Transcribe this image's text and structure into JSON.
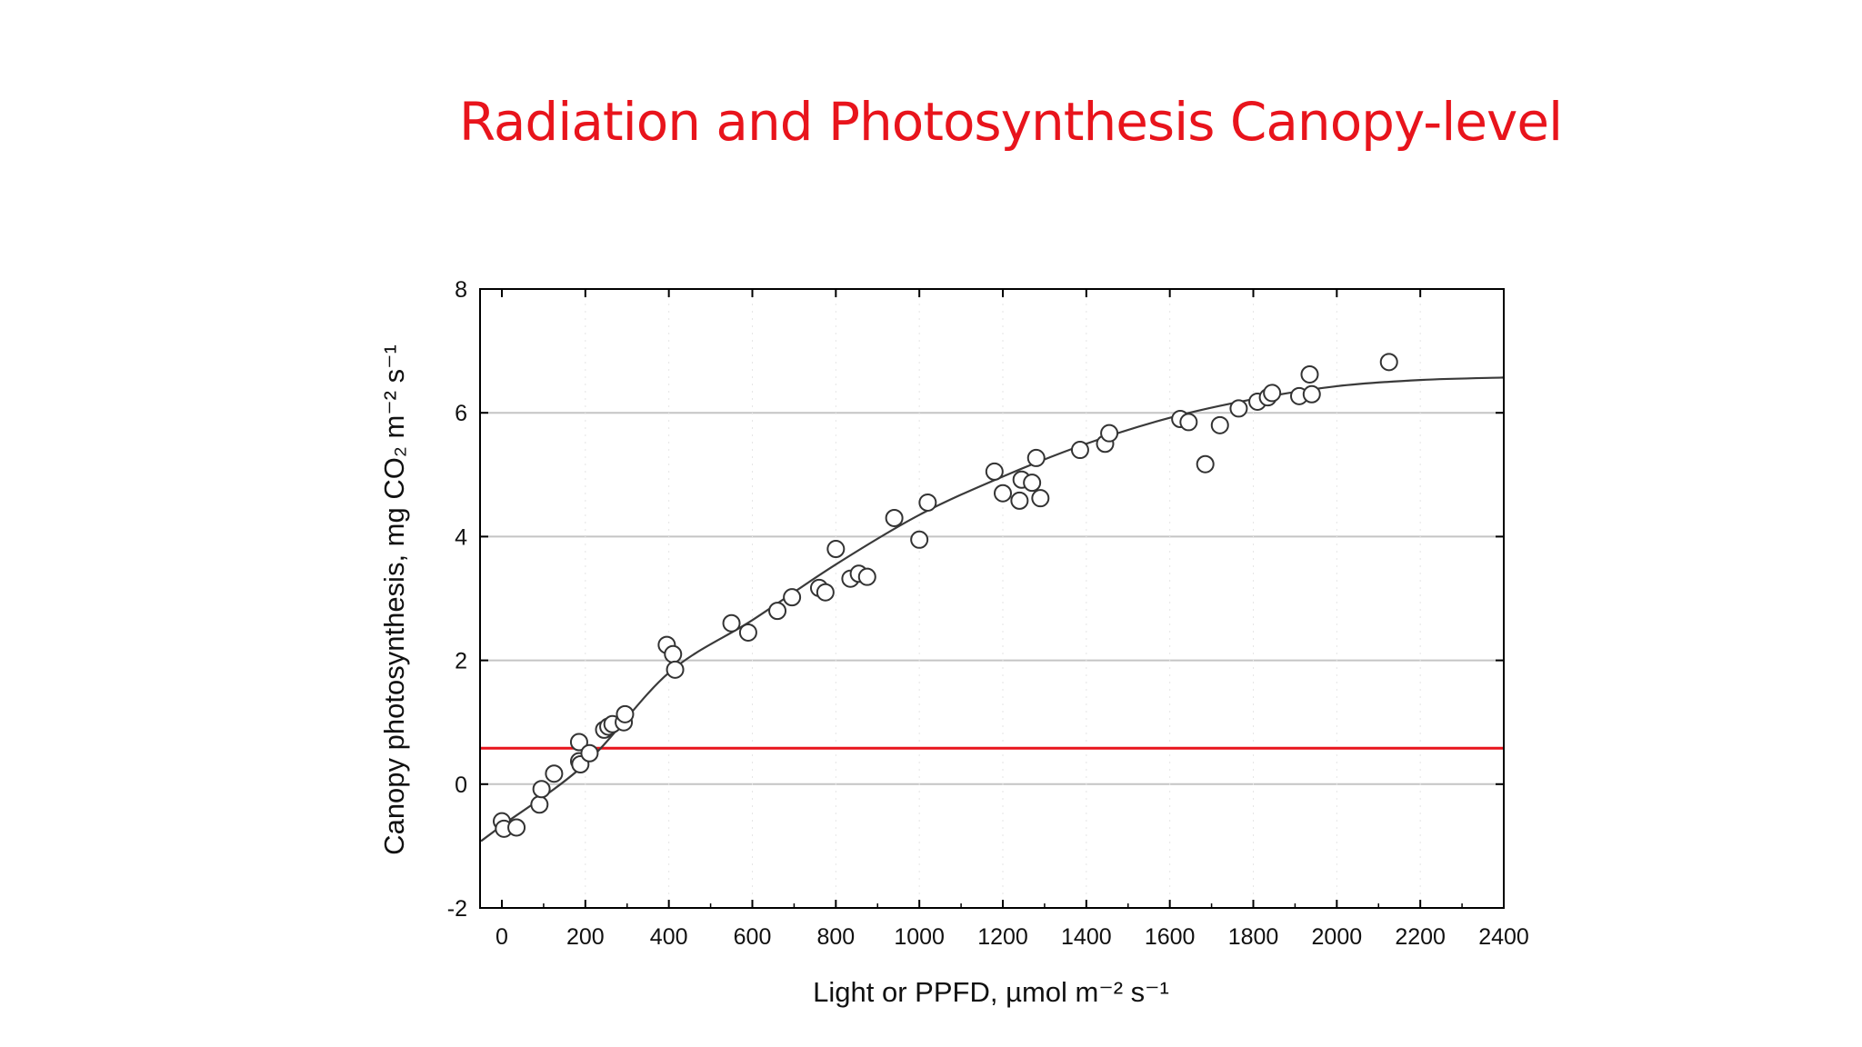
{
  "slide": {
    "title": "Radiation and Photosynthesis  Canopy-level"
  },
  "chart_data": {
    "type": "scatter",
    "xlabel": "Light or PPFD, µmol m⁻² s⁻¹",
    "ylabel": "Canopy photosynthesis, mg CO₂ m⁻² s⁻¹",
    "xlim": [
      -50,
      2400
    ],
    "ylim": [
      -2,
      8
    ],
    "x_ticks": [
      0,
      200,
      400,
      600,
      800,
      1000,
      1200,
      1400,
      1600,
      1800,
      2000,
      2200,
      2400
    ],
    "y_ticks": [
      -2,
      0,
      2,
      4,
      6,
      8
    ],
    "grid": {
      "horizontal": true,
      "y_lines": [
        0,
        2,
        4,
        6
      ]
    },
    "reference_line": {
      "y": 0.58,
      "color": "#e8141c"
    },
    "fit_curve": {
      "type": "quadratic",
      "x": [
        -50,
        0,
        200,
        400,
        600,
        800,
        1000,
        1200,
        1400,
        1600,
        1800,
        2000,
        2200,
        2400
      ],
      "y": [
        -0.92,
        -0.67,
        0.33,
        1.8,
        2.65,
        3.55,
        4.35,
        4.97,
        5.5,
        5.92,
        6.22,
        6.43,
        6.53,
        6.57
      ]
    },
    "points": {
      "x": [
        0,
        5,
        35,
        90,
        95,
        125,
        185,
        188,
        185,
        210,
        245,
        255,
        265,
        292,
        295,
        395,
        410,
        415,
        550,
        590,
        660,
        695,
        760,
        775,
        800,
        835,
        855,
        875,
        940,
        1000,
        1020,
        1180,
        1200,
        1240,
        1245,
        1270,
        1280,
        1290,
        1385,
        1445,
        1455,
        1625,
        1645,
        1685,
        1720,
        1765,
        1810,
        1835,
        1845,
        1910,
        1935,
        1940,
        2125
      ],
      "y": [
        -0.6,
        -0.72,
        -0.7,
        -0.33,
        -0.08,
        0.17,
        0.37,
        0.32,
        0.68,
        0.5,
        0.88,
        0.93,
        0.97,
        1.0,
        1.13,
        2.25,
        2.1,
        1.85,
        2.6,
        2.45,
        2.8,
        3.02,
        3.17,
        3.1,
        3.8,
        3.32,
        3.4,
        3.35,
        4.3,
        3.95,
        4.55,
        5.05,
        4.7,
        4.58,
        4.92,
        4.87,
        5.27,
        4.62,
        5.4,
        5.5,
        5.67,
        5.9,
        5.85,
        5.17,
        5.8,
        6.07,
        6.18,
        6.25,
        6.32,
        6.27,
        6.62,
        6.3,
        6.82
      ]
    },
    "colors": {
      "title": "#e8141c",
      "reference_line": "#e8141c",
      "curve": "#3a3a3a",
      "grid": "#c4c4c4"
    }
  }
}
